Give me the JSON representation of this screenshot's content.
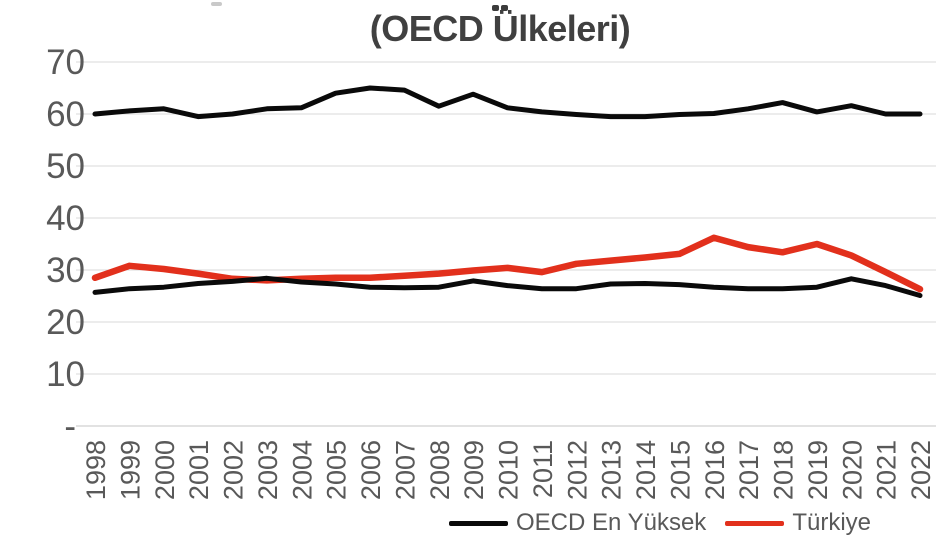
{
  "title": {
    "text": "(OECD Ülkeleri)",
    "first_line_clipped": true
  },
  "legend": {
    "position": "bottom",
    "clipped_at_bottom": true,
    "items": [
      {
        "label": "OECD En Yüksek",
        "color": "#0a0a0a"
      },
      {
        "label": "Türkiye",
        "color": "#e2301c"
      }
    ]
  },
  "chart_data": {
    "type": "line",
    "title": "(OECD Ülkeleri)",
    "title_clipped_first_line": true,
    "xlabel": "",
    "ylabel": "",
    "ylim": [
      0,
      70
    ],
    "grid": "horizontal",
    "legend_position": "bottom",
    "style": {
      "grid_color": "#d9d9d9",
      "baseline_color": "#c6c6c6",
      "tick_color": "#595959",
      "title_color": "#404040"
    },
    "x": [
      "1998",
      "1999",
      "2000",
      "2001",
      "2002",
      "2003",
      "2004",
      "2005",
      "2006",
      "2007",
      "2008",
      "2009",
      "2010",
      "2011",
      "2012",
      "2013",
      "2014",
      "2015",
      "2016",
      "2017",
      "2018",
      "2019",
      "2020",
      "2021",
      "2022"
    ],
    "y_axis": {
      "ticks": [
        {
          "value": 0,
          "label": "-"
        },
        {
          "value": 10,
          "label": "10"
        },
        {
          "value": 20,
          "label": "20"
        },
        {
          "value": 30,
          "label": "30"
        },
        {
          "value": 40,
          "label": "40"
        },
        {
          "value": 50,
          "label": "50"
        },
        {
          "value": 60,
          "label": "60"
        },
        {
          "value": 70,
          "label": "70"
        }
      ]
    },
    "series": [
      {
        "id": "oecd-en-yuksek",
        "name": "OECD En Yüksek",
        "color": "#0a0a0a",
        "width": 5,
        "legend_visible": true,
        "values": [
          60,
          60.6,
          61,
          59.5,
          60,
          61,
          61.2,
          64,
          65,
          64.6,
          61.5,
          63.8,
          61.2,
          60.4,
          59.9,
          59.5,
          59.5,
          59.9,
          60.1,
          61,
          62.2,
          60.4,
          61.6,
          60,
          60
        ]
      },
      {
        "id": "turkiye",
        "name": "Türkiye",
        "color": "#e2301c",
        "width": 6.5,
        "legend_visible": true,
        "values": [
          28.5,
          30.8,
          30.2,
          29.3,
          28.3,
          28,
          28.3,
          28.5,
          28.5,
          28.9,
          29.3,
          29.9,
          30.4,
          29.6,
          31.2,
          31.8,
          32.4,
          33.1,
          36.2,
          34.4,
          33.4,
          35,
          32.8,
          29.6,
          26.3
        ]
      },
      {
        "id": "unlabeled-lower-black",
        "name": "",
        "color": "#0a0a0a",
        "width": 5,
        "legend_visible": false,
        "values": [
          25.7,
          26.4,
          26.7,
          27.4,
          27.8,
          28.4,
          27.7,
          27.3,
          26.7,
          26.6,
          26.7,
          27.9,
          27,
          26.4,
          26.4,
          27.3,
          27.4,
          27.2,
          26.7,
          26.4,
          26.4,
          26.7,
          28.3,
          27,
          25.1
        ]
      }
    ],
    "draw_order": [
      1,
      0,
      2
    ]
  }
}
